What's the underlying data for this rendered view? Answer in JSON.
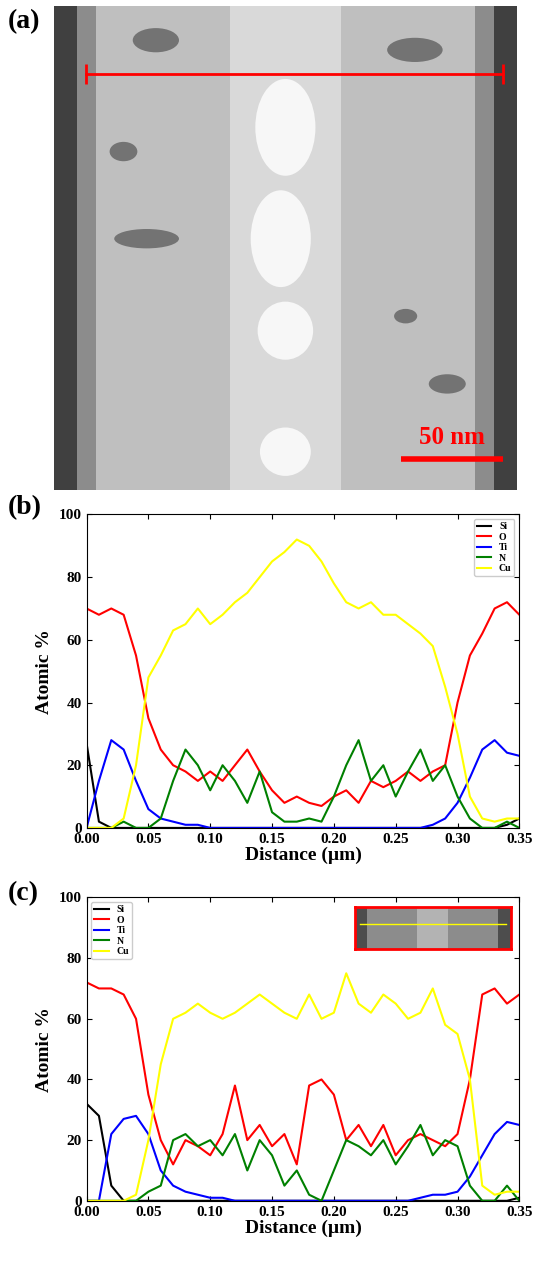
{
  "image": {
    "label": "(a)",
    "scale_bar": "50 nm"
  },
  "chart_data": [
    {
      "type": "line",
      "title": "(b)",
      "x_label": "Distance (µm)",
      "y_label": "Atomic %",
      "x": [
        0.0,
        0.01,
        0.02,
        0.03,
        0.04,
        0.05,
        0.06,
        0.07,
        0.08,
        0.09,
        0.1,
        0.11,
        0.12,
        0.13,
        0.14,
        0.15,
        0.16,
        0.17,
        0.18,
        0.19,
        0.2,
        0.21,
        0.22,
        0.23,
        0.24,
        0.25,
        0.26,
        0.27,
        0.28,
        0.29,
        0.3,
        0.31,
        0.32,
        0.33,
        0.34,
        0.35
      ],
      "xlim": [
        0.0,
        0.35
      ],
      "xticks": [
        {
          "value": 0.0,
          "label": "0.00"
        },
        {
          "value": 0.05,
          "label": "0.05"
        },
        {
          "value": 0.1,
          "label": "0.10"
        },
        {
          "value": 0.15,
          "label": "0.15"
        },
        {
          "value": 0.2,
          "label": "0.20"
        },
        {
          "value": 0.25,
          "label": "0.25"
        },
        {
          "value": 0.3,
          "label": "0.30"
        },
        {
          "value": 0.35,
          "label": "0.35"
        }
      ],
      "ylim": [
        0,
        100
      ],
      "yticks": [
        0,
        20,
        40,
        60,
        80,
        100
      ],
      "legend": "upper right",
      "series": [
        {
          "name": "Si",
          "color": "#000000",
          "values": [
            27,
            2,
            0,
            0,
            0,
            0,
            0,
            0,
            0,
            0,
            0,
            0,
            0,
            0,
            0,
            0,
            0,
            0,
            0,
            0,
            0,
            0,
            0,
            0,
            0,
            0,
            0,
            0,
            0,
            0,
            0,
            0,
            0,
            0,
            1,
            3
          ]
        },
        {
          "name": "O",
          "color": "#ff0000",
          "values": [
            70,
            68,
            70,
            68,
            55,
            35,
            25,
            20,
            18,
            15,
            18,
            15,
            20,
            25,
            18,
            12,
            8,
            10,
            8,
            7,
            10,
            12,
            8,
            15,
            13,
            15,
            18,
            15,
            18,
            20,
            40,
            55,
            62,
            70,
            72,
            68
          ]
        },
        {
          "name": "Ti",
          "color": "#0000ff",
          "values": [
            0,
            15,
            28,
            25,
            15,
            6,
            3,
            2,
            1,
            1,
            0,
            0,
            0,
            0,
            0,
            0,
            0,
            0,
            0,
            0,
            0,
            0,
            0,
            0,
            0,
            0,
            0,
            0,
            1,
            3,
            8,
            16,
            25,
            28,
            24,
            23
          ]
        },
        {
          "name": "N",
          "color": "#008000",
          "values": [
            0,
            0,
            0,
            2,
            0,
            0,
            3,
            15,
            25,
            20,
            12,
            20,
            15,
            8,
            18,
            5,
            2,
            2,
            3,
            2,
            10,
            20,
            28,
            15,
            20,
            10,
            18,
            25,
            15,
            20,
            10,
            3,
            0,
            0,
            2,
            0
          ]
        },
        {
          "name": "Cu",
          "color": "#ffff00",
          "values": [
            0,
            0,
            0,
            3,
            20,
            48,
            55,
            63,
            65,
            70,
            65,
            68,
            72,
            75,
            80,
            85,
            88,
            92,
            90,
            85,
            78,
            72,
            70,
            72,
            68,
            68,
            65,
            62,
            58,
            45,
            30,
            10,
            3,
            2,
            3,
            3
          ]
        }
      ]
    },
    {
      "type": "line",
      "title": "(c)",
      "x_label": "Distance (µm)",
      "y_label": "Atomic %",
      "x": [
        0.0,
        0.01,
        0.02,
        0.03,
        0.04,
        0.05,
        0.06,
        0.07,
        0.08,
        0.09,
        0.1,
        0.11,
        0.12,
        0.13,
        0.14,
        0.15,
        0.16,
        0.17,
        0.18,
        0.19,
        0.2,
        0.21,
        0.22,
        0.23,
        0.24,
        0.25,
        0.26,
        0.27,
        0.28,
        0.29,
        0.3,
        0.31,
        0.32,
        0.33,
        0.34,
        0.35
      ],
      "xlim": [
        0.0,
        0.35
      ],
      "xticks": [
        {
          "value": 0.0,
          "label": "0.00"
        },
        {
          "value": 0.05,
          "label": "0.05"
        },
        {
          "value": 0.1,
          "label": "0.10"
        },
        {
          "value": 0.15,
          "label": "0.15"
        },
        {
          "value": 0.2,
          "label": "0.20"
        },
        {
          "value": 0.25,
          "label": "0.25"
        },
        {
          "value": 0.3,
          "label": "0.30"
        },
        {
          "value": 0.35,
          "label": "0.35"
        }
      ],
      "ylim": [
        0,
        100
      ],
      "yticks": [
        0,
        20,
        40,
        60,
        80,
        100
      ],
      "legend": "upper left",
      "series": [
        {
          "name": "Si",
          "color": "#000000",
          "values": [
            32,
            28,
            5,
            0,
            0,
            0,
            0,
            0,
            0,
            0,
            0,
            0,
            0,
            0,
            0,
            0,
            0,
            0,
            0,
            0,
            0,
            0,
            0,
            0,
            0,
            0,
            0,
            0,
            0,
            0,
            0,
            0,
            0,
            0,
            0,
            1
          ]
        },
        {
          "name": "O",
          "color": "#ff0000",
          "values": [
            72,
            70,
            70,
            68,
            60,
            35,
            20,
            12,
            20,
            18,
            15,
            22,
            38,
            20,
            25,
            18,
            22,
            12,
            38,
            40,
            35,
            20,
            25,
            18,
            25,
            15,
            20,
            22,
            20,
            18,
            22,
            40,
            68,
            70,
            65,
            68
          ]
        },
        {
          "name": "Ti",
          "color": "#0000ff",
          "values": [
            0,
            0,
            22,
            27,
            28,
            22,
            10,
            5,
            3,
            2,
            1,
            1,
            0,
            0,
            0,
            0,
            0,
            0,
            0,
            0,
            0,
            0,
            0,
            0,
            0,
            0,
            0,
            1,
            2,
            2,
            3,
            8,
            15,
            22,
            26,
            25
          ]
        },
        {
          "name": "N",
          "color": "#008000",
          "values": [
            0,
            0,
            0,
            0,
            0,
            3,
            5,
            20,
            22,
            18,
            20,
            15,
            22,
            10,
            20,
            15,
            5,
            10,
            2,
            0,
            10,
            20,
            18,
            15,
            20,
            12,
            18,
            25,
            15,
            20,
            18,
            5,
            0,
            0,
            5,
            0
          ]
        },
        {
          "name": "Cu",
          "color": "#ffff00",
          "values": [
            0,
            0,
            0,
            0,
            2,
            20,
            45,
            60,
            62,
            65,
            62,
            60,
            62,
            65,
            68,
            65,
            62,
            60,
            68,
            60,
            62,
            75,
            65,
            62,
            68,
            65,
            60,
            62,
            70,
            58,
            55,
            40,
            5,
            2,
            3,
            3
          ]
        }
      ]
    }
  ]
}
